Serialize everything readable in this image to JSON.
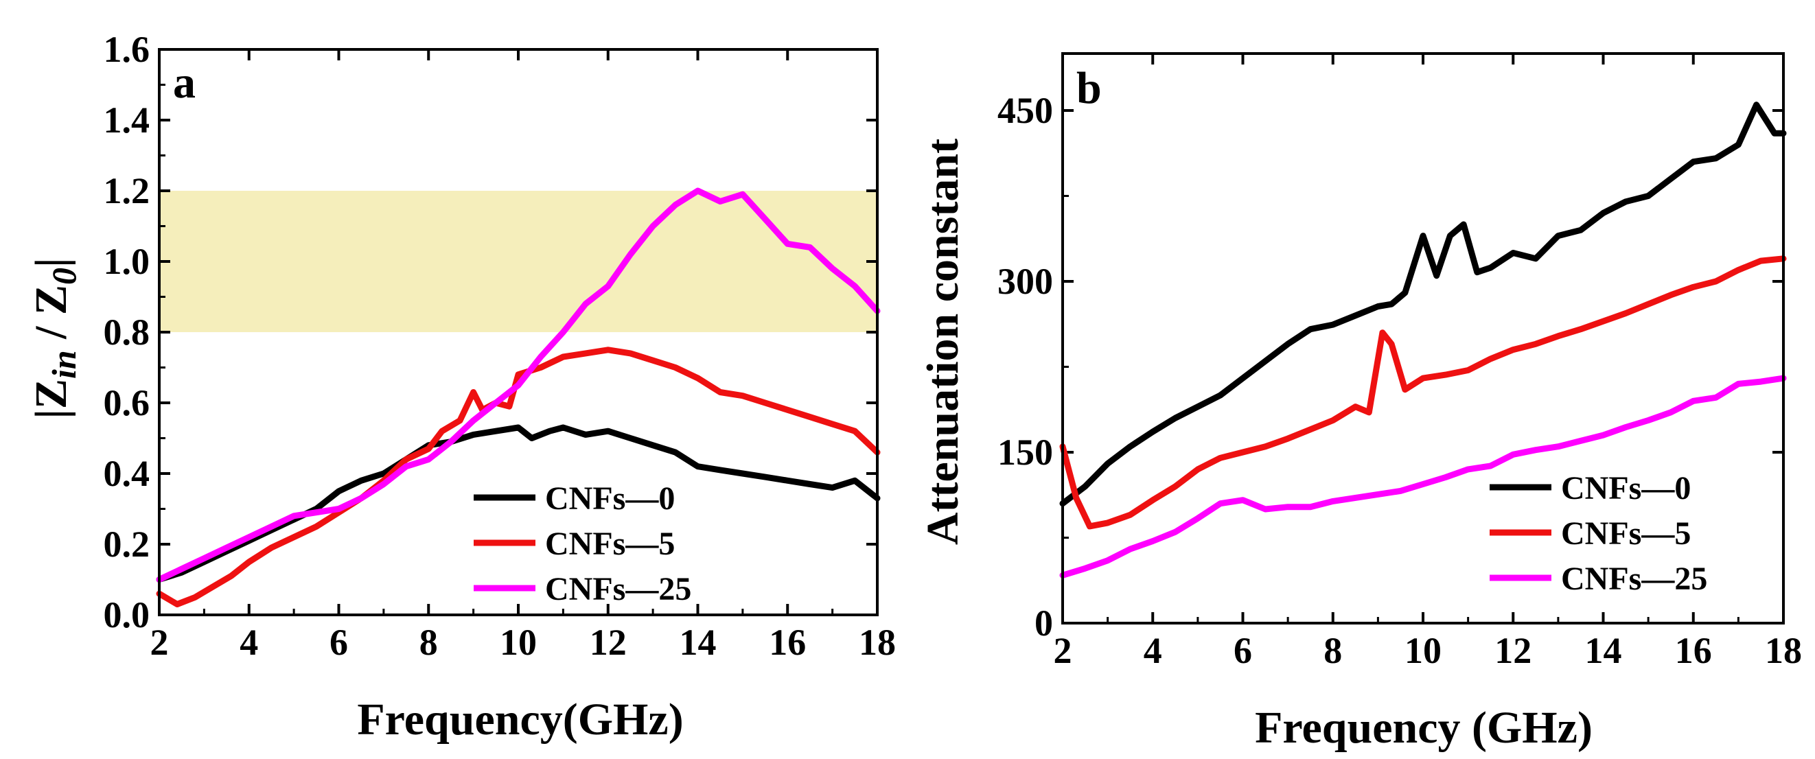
{
  "chart_data": [
    {
      "type": "line",
      "panel_label": "a",
      "ylabel_parts": {
        "open": "|",
        "z": "Z",
        "sub_in": "in",
        "slash": " / ",
        "z0": "Z",
        "sub0": "0",
        "close": "|"
      },
      "xlabel": "Frequency(GHz)",
      "xlim": [
        2,
        18
      ],
      "ylim": [
        0,
        1.6
      ],
      "xticks": [
        2,
        4,
        6,
        8,
        10,
        12,
        14,
        16,
        18
      ],
      "yticks": [
        "0.0",
        "0.2",
        "0.4",
        "0.6",
        "0.8",
        "1.0",
        "1.2",
        "1.4",
        "1.6"
      ],
      "highlight_band": {
        "y0": 0.8,
        "y1": 1.2,
        "color": "#f5eebb"
      },
      "legend_position": "bottom-right",
      "series": [
        {
          "name": "CNFs—0",
          "color": "#000000",
          "x": [
            2,
            2.5,
            3,
            3.5,
            4,
            4.5,
            5,
            5.5,
            6,
            6.5,
            7,
            7.5,
            8,
            8.5,
            9,
            9.5,
            10,
            10.3,
            10.7,
            11,
            11.5,
            12,
            12.5,
            13,
            13.5,
            14,
            14.5,
            15,
            15.5,
            16,
            16.5,
            17,
            17.5,
            18
          ],
          "y": [
            0.1,
            0.12,
            0.15,
            0.18,
            0.21,
            0.24,
            0.27,
            0.3,
            0.35,
            0.38,
            0.4,
            0.44,
            0.48,
            0.49,
            0.51,
            0.52,
            0.53,
            0.5,
            0.52,
            0.53,
            0.51,
            0.52,
            0.5,
            0.48,
            0.46,
            0.42,
            0.41,
            0.4,
            0.39,
            0.38,
            0.37,
            0.36,
            0.38,
            0.33
          ]
        },
        {
          "name": "CNFs—5",
          "color": "#ee1111",
          "x": [
            2,
            2.4,
            2.8,
            3.2,
            3.6,
            4,
            4.5,
            5,
            5.5,
            6,
            6.5,
            7,
            7.5,
            8,
            8.3,
            8.7,
            9,
            9.2,
            9.5,
            9.8,
            10,
            10.5,
            11,
            11.5,
            12,
            12.5,
            13,
            13.5,
            14,
            14.5,
            15,
            15.5,
            16,
            16.5,
            17,
            17.5,
            18
          ],
          "y": [
            0.06,
            0.03,
            0.05,
            0.08,
            0.11,
            0.15,
            0.19,
            0.22,
            0.25,
            0.29,
            0.33,
            0.38,
            0.44,
            0.47,
            0.52,
            0.55,
            0.63,
            0.58,
            0.6,
            0.59,
            0.68,
            0.7,
            0.73,
            0.74,
            0.75,
            0.74,
            0.72,
            0.7,
            0.67,
            0.63,
            0.62,
            0.6,
            0.58,
            0.56,
            0.54,
            0.52,
            0.46
          ]
        },
        {
          "name": "CNFs—25",
          "color": "#ff00ff",
          "x": [
            2,
            2.5,
            3,
            3.5,
            4,
            4.5,
            5,
            5.5,
            6,
            6.5,
            7,
            7.5,
            8,
            8.5,
            9,
            9.5,
            10,
            10.5,
            11,
            11.5,
            12,
            12.5,
            13,
            13.5,
            14,
            14.5,
            15,
            15.5,
            16,
            16.5,
            17,
            17.5,
            18
          ],
          "y": [
            0.1,
            0.13,
            0.16,
            0.19,
            0.22,
            0.25,
            0.28,
            0.29,
            0.3,
            0.33,
            0.37,
            0.42,
            0.44,
            0.49,
            0.55,
            0.6,
            0.65,
            0.73,
            0.8,
            0.88,
            0.93,
            1.02,
            1.1,
            1.16,
            1.2,
            1.17,
            1.19,
            1.12,
            1.05,
            1.04,
            0.98,
            0.93,
            0.86
          ]
        }
      ]
    },
    {
      "type": "line",
      "panel_label": "b",
      "ylabel": "Attenuation constant",
      "xlabel": "Frequency (GHz)",
      "xlim": [
        2,
        18
      ],
      "ylim": [
        0,
        500
      ],
      "xticks": [
        2,
        4,
        6,
        8,
        10,
        12,
        14,
        16,
        18
      ],
      "yticks": [
        "0",
        "150",
        "300",
        "450"
      ],
      "ytick_values": [
        0,
        150,
        300,
        450
      ],
      "legend_position": "bottom-right",
      "series": [
        {
          "name": "CNFs—0",
          "color": "#000000",
          "x": [
            2,
            2.5,
            3,
            3.5,
            4,
            4.5,
            5,
            5.5,
            6,
            6.5,
            7,
            7.5,
            8,
            8.5,
            9,
            9.3,
            9.6,
            10,
            10.3,
            10.6,
            10.9,
            11.2,
            11.5,
            12,
            12.5,
            13,
            13.5,
            14,
            14.5,
            15,
            15.5,
            16,
            16.5,
            17,
            17.4,
            17.8,
            18
          ],
          "y": [
            105,
            120,
            140,
            155,
            168,
            180,
            190,
            200,
            215,
            230,
            245,
            258,
            262,
            270,
            278,
            280,
            290,
            340,
            305,
            340,
            350,
            308,
            312,
            325,
            320,
            340,
            345,
            360,
            370,
            375,
            390,
            405,
            408,
            420,
            455,
            430,
            430
          ]
        },
        {
          "name": "CNFs—5",
          "color": "#ee1111",
          "x": [
            2,
            2.3,
            2.6,
            3,
            3.5,
            4,
            4.5,
            5,
            5.5,
            6,
            6.5,
            7,
            7.5,
            8,
            8.5,
            8.8,
            9.1,
            9.3,
            9.6,
            10,
            10.5,
            11,
            11.5,
            12,
            12.5,
            13,
            13.5,
            14,
            14.5,
            15,
            15.5,
            16,
            16.5,
            17,
            17.5,
            18
          ],
          "y": [
            155,
            110,
            85,
            88,
            95,
            108,
            120,
            135,
            145,
            150,
            155,
            162,
            170,
            178,
            190,
            185,
            255,
            245,
            205,
            215,
            218,
            222,
            232,
            240,
            245,
            252,
            258,
            265,
            272,
            280,
            288,
            295,
            300,
            310,
            318,
            320
          ]
        },
        {
          "name": "CNFs—25",
          "color": "#ff00ff",
          "x": [
            2,
            2.5,
            3,
            3.5,
            4,
            4.5,
            5,
            5.5,
            6,
            6.5,
            7,
            7.5,
            8,
            8.5,
            9,
            9.5,
            10,
            10.5,
            11,
            11.5,
            12,
            12.5,
            13,
            13.5,
            14,
            14.5,
            15,
            15.5,
            16,
            16.5,
            17,
            17.5,
            18
          ],
          "y": [
            42,
            48,
            55,
            65,
            72,
            80,
            92,
            105,
            108,
            100,
            102,
            102,
            107,
            110,
            113,
            116,
            122,
            128,
            135,
            138,
            148,
            152,
            155,
            160,
            165,
            172,
            178,
            185,
            195,
            198,
            210,
            212,
            215
          ]
        }
      ]
    }
  ]
}
